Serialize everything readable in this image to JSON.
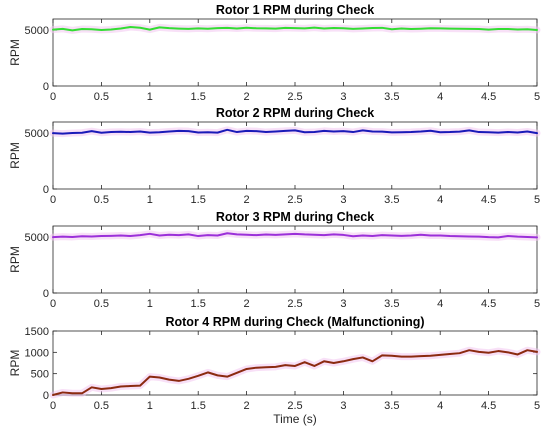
{
  "chart_data": [
    {
      "type": "line",
      "title": "Rotor 1 RPM during Check",
      "xlabel": "",
      "ylabel": "RPM",
      "xlim": [
        0,
        5
      ],
      "ylim": [
        0,
        6000
      ],
      "xticks": [
        "0",
        "0.5",
        "1",
        "1.5",
        "2",
        "2.5",
        "3",
        "3.5",
        "4",
        "4.5",
        "5"
      ],
      "yticks": [
        "0",
        "5000"
      ],
      "yticks_values": [
        0,
        5000
      ],
      "color": "#33dd33",
      "series": [
        {
          "x": [
            0,
            0.1,
            0.2,
            0.3,
            0.4,
            0.5,
            0.6,
            0.7,
            0.8,
            0.9,
            1.0,
            1.1,
            1.2,
            1.3,
            1.4,
            1.5,
            1.6,
            1.7,
            1.8,
            1.9,
            2.0,
            2.1,
            2.2,
            2.3,
            2.4,
            2.5,
            2.6,
            2.7,
            2.8,
            2.9,
            3.0,
            3.1,
            3.2,
            3.3,
            3.4,
            3.5,
            3.6,
            3.7,
            3.8,
            3.9,
            4.0,
            4.1,
            4.2,
            4.3,
            4.4,
            4.5,
            4.6,
            4.7,
            4.8,
            4.9,
            5.0
          ],
          "values": [
            5050,
            5120,
            4980,
            5100,
            5080,
            5020,
            5060,
            5150,
            5280,
            5220,
            5050,
            5250,
            5180,
            5140,
            5120,
            5160,
            5130,
            5180,
            5200,
            5150,
            5220,
            5170,
            5160,
            5140,
            5200,
            5180,
            5160,
            5230,
            5150,
            5190,
            5170,
            5120,
            5150,
            5190,
            5210,
            5080,
            5150,
            5100,
            5130,
            5170,
            5160,
            5140,
            5130,
            5120,
            5110,
            5050,
            5100,
            5110,
            5060,
            5080,
            5020
          ]
        }
      ]
    },
    {
      "type": "line",
      "title": "Rotor 2 RPM during Check",
      "xlabel": "",
      "ylabel": "RPM",
      "xlim": [
        0,
        5
      ],
      "ylim": [
        0,
        6000
      ],
      "xticks": [
        "0",
        "0.5",
        "1",
        "1.5",
        "2",
        "2.5",
        "3",
        "3.5",
        "4",
        "4.5",
        "5"
      ],
      "yticks": [
        "0",
        "5000"
      ],
      "yticks_values": [
        0,
        5000
      ],
      "color": "#1a1ab8",
      "series": [
        {
          "x": [
            0,
            0.1,
            0.2,
            0.3,
            0.4,
            0.5,
            0.6,
            0.7,
            0.8,
            0.9,
            1.0,
            1.1,
            1.2,
            1.3,
            1.4,
            1.5,
            1.6,
            1.7,
            1.8,
            1.9,
            2.0,
            2.1,
            2.2,
            2.3,
            2.4,
            2.5,
            2.6,
            2.7,
            2.8,
            2.9,
            3.0,
            3.1,
            3.2,
            3.3,
            3.4,
            3.5,
            3.6,
            3.7,
            3.8,
            3.9,
            4.0,
            4.1,
            4.2,
            4.3,
            4.4,
            4.5,
            4.6,
            4.7,
            4.8,
            4.9,
            5.0
          ],
          "values": [
            5000,
            4960,
            5010,
            5040,
            5180,
            5040,
            5100,
            5130,
            5100,
            5150,
            5050,
            5080,
            5150,
            5200,
            5180,
            5060,
            5080,
            5050,
            5300,
            5100,
            5200,
            5180,
            5100,
            5150,
            5200,
            5250,
            5080,
            5100,
            5200,
            5150,
            5180,
            5100,
            5250,
            5150,
            5140,
            5070,
            5080,
            5100,
            5150,
            5220,
            5080,
            5100,
            5140,
            5250,
            5100,
            5080,
            5050,
            5100,
            5060,
            5150,
            5000
          ]
        }
      ]
    },
    {
      "type": "line",
      "title": "Rotor 3 RPM during Check",
      "xlabel": "",
      "ylabel": "RPM",
      "xlim": [
        0,
        5
      ],
      "ylim": [
        0,
        6000
      ],
      "xticks": [
        "0",
        "0.5",
        "1",
        "1.5",
        "2",
        "2.5",
        "3",
        "3.5",
        "4",
        "4.5",
        "5"
      ],
      "yticks": [
        "0",
        "5000"
      ],
      "yticks_values": [
        0,
        5000
      ],
      "color": "#9b30d9",
      "series": [
        {
          "x": [
            0,
            0.1,
            0.2,
            0.3,
            0.4,
            0.5,
            0.6,
            0.7,
            0.8,
            0.9,
            1.0,
            1.1,
            1.2,
            1.3,
            1.4,
            1.5,
            1.6,
            1.7,
            1.8,
            1.9,
            2.0,
            2.1,
            2.2,
            2.3,
            2.4,
            2.5,
            2.6,
            2.7,
            2.8,
            2.9,
            3.0,
            3.1,
            3.2,
            3.3,
            3.4,
            3.5,
            3.6,
            3.7,
            3.8,
            3.9,
            4.0,
            4.1,
            4.2,
            4.3,
            4.4,
            4.5,
            4.6,
            4.7,
            4.8,
            4.9,
            5.0
          ],
          "values": [
            5000,
            5050,
            5020,
            5080,
            5060,
            5100,
            5120,
            5150,
            5100,
            5180,
            5300,
            5150,
            5220,
            5180,
            5250,
            5100,
            5180,
            5150,
            5350,
            5250,
            5220,
            5180,
            5240,
            5200,
            5250,
            5300,
            5250,
            5220,
            5180,
            5250,
            5200,
            5080,
            5150,
            5100,
            5180,
            5150,
            5120,
            5150,
            5220,
            5150,
            5150,
            5100,
            5080,
            5060,
            5050,
            5000,
            4980,
            5100,
            5050,
            5020,
            4980
          ]
        }
      ]
    },
    {
      "type": "line",
      "title": "Rotor 4 RPM during Check (Malfunctioning)",
      "xlabel": "Time (s)",
      "ylabel": "RPM",
      "xlim": [
        0,
        5
      ],
      "ylim": [
        0,
        1500
      ],
      "xticks": [
        "0",
        "0.5",
        "1",
        "1.5",
        "2",
        "2.5",
        "3",
        "3.5",
        "4",
        "4.5",
        "5"
      ],
      "yticks": [
        "0",
        "500",
        "1000",
        "1500"
      ],
      "yticks_values": [
        0,
        500,
        1000,
        1500
      ],
      "color": "#8b2a10",
      "series": [
        {
          "x": [
            0,
            0.1,
            0.2,
            0.3,
            0.4,
            0.5,
            0.6,
            0.7,
            0.8,
            0.9,
            1.0,
            1.1,
            1.2,
            1.3,
            1.4,
            1.5,
            1.6,
            1.7,
            1.8,
            1.9,
            2.0,
            2.1,
            2.2,
            2.3,
            2.4,
            2.5,
            2.6,
            2.7,
            2.8,
            2.9,
            3.0,
            3.1,
            3.2,
            3.3,
            3.4,
            3.5,
            3.6,
            3.7,
            3.8,
            3.9,
            4.0,
            4.1,
            4.2,
            4.3,
            4.4,
            4.5,
            4.6,
            4.7,
            4.8,
            4.9,
            5.0
          ],
          "values": [
            0,
            60,
            40,
            40,
            180,
            140,
            160,
            200,
            210,
            220,
            430,
            410,
            360,
            330,
            380,
            450,
            530,
            460,
            430,
            520,
            610,
            640,
            650,
            660,
            700,
            680,
            770,
            680,
            790,
            750,
            790,
            840,
            880,
            790,
            930,
            920,
            900,
            900,
            910,
            920,
            940,
            960,
            980,
            1050,
            1010,
            990,
            1030,
            1000,
            950,
            1050,
            1010
          ]
        }
      ]
    }
  ]
}
